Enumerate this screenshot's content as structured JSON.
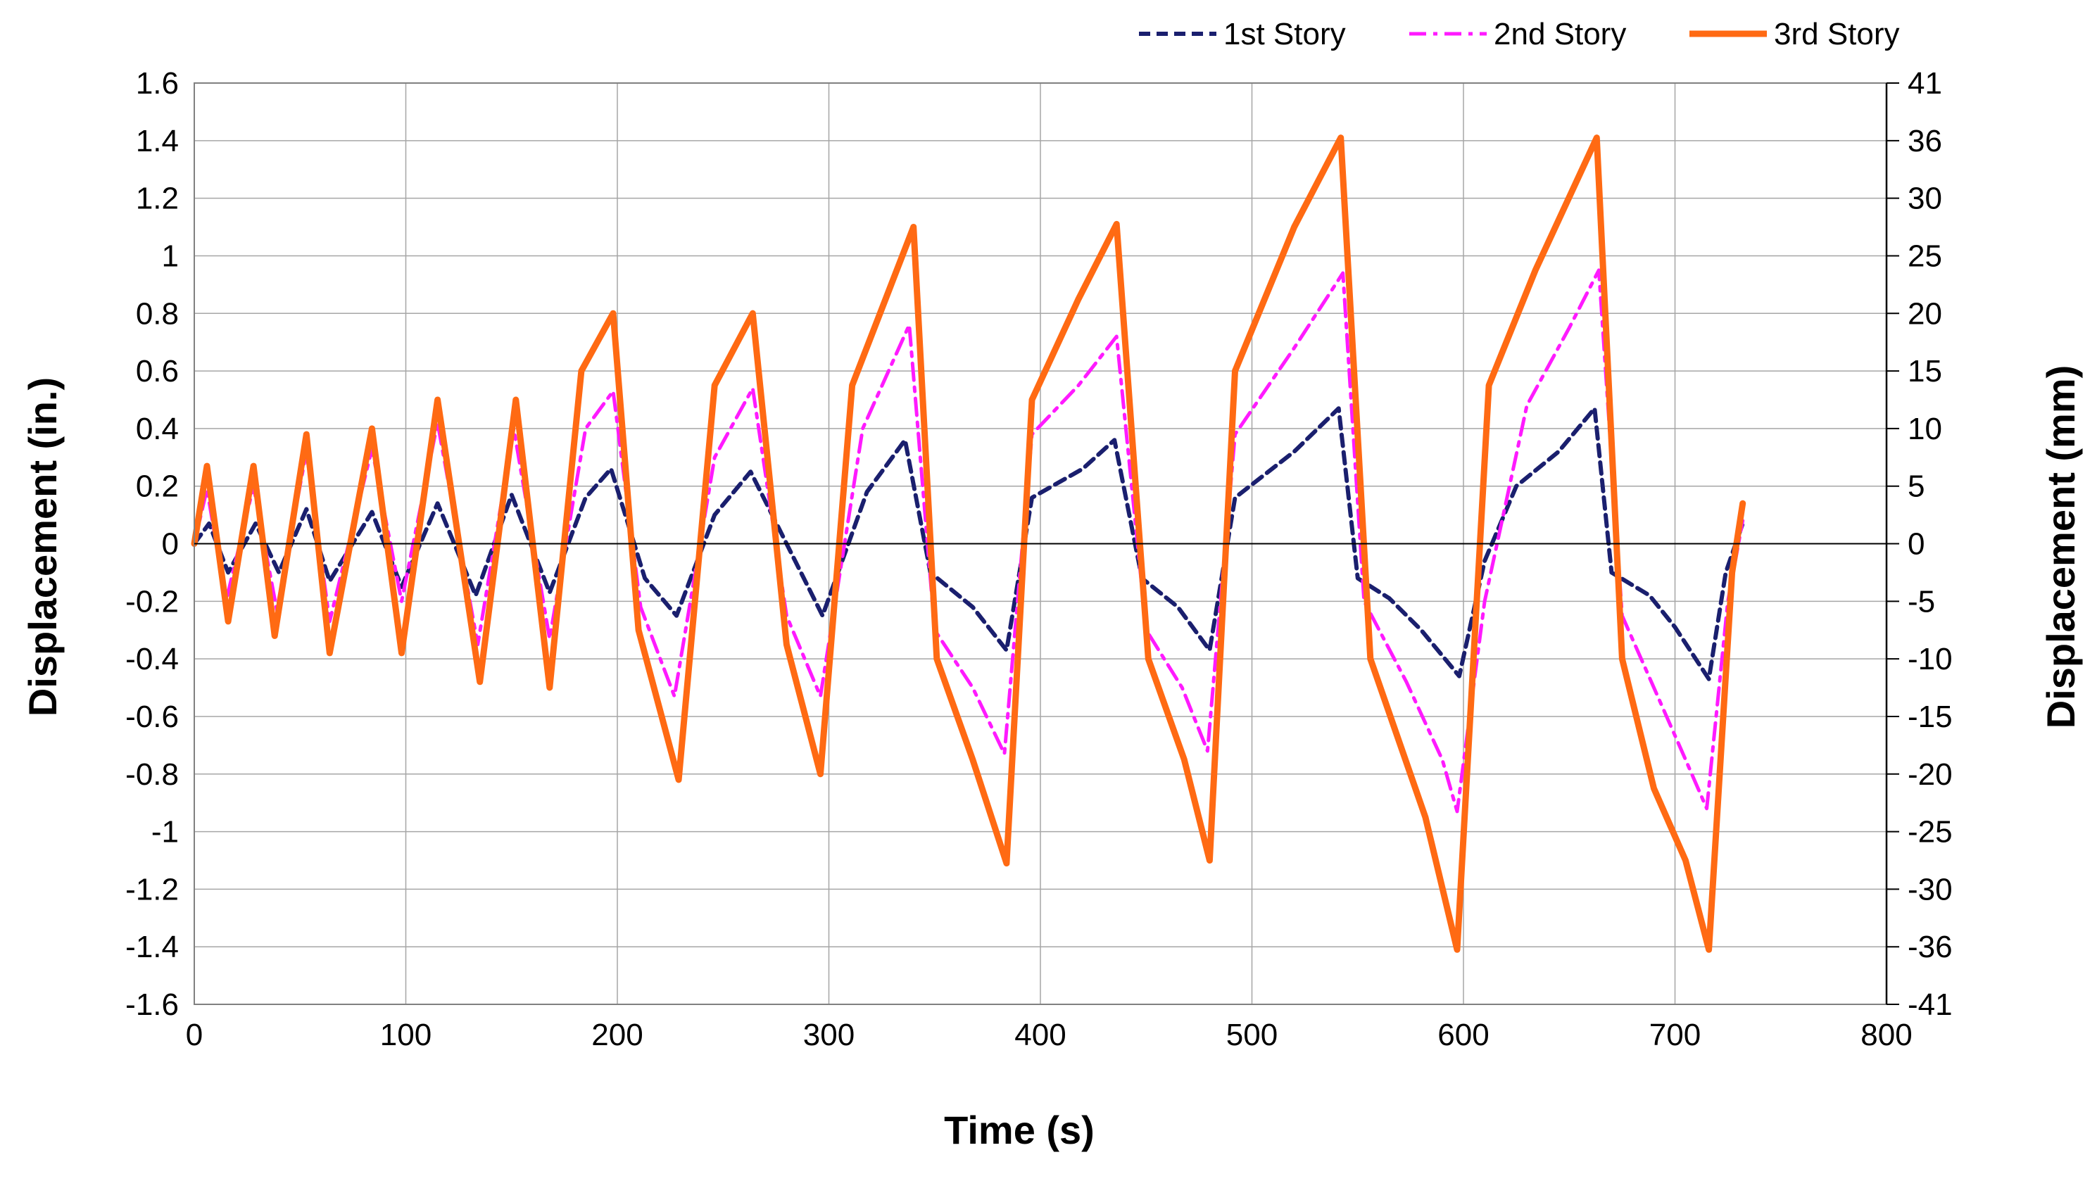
{
  "chart_data": {
    "type": "line",
    "title": "",
    "xlabel": "Time (s)",
    "ylabel": "Displacement (in.)",
    "ylabel_right": "Displacement (mm)",
    "xlim": [
      0,
      800
    ],
    "ylim": [
      -1.6,
      1.6
    ],
    "xticks": [
      "0",
      "100",
      "200",
      "300",
      "400",
      "500",
      "600",
      "700",
      "800"
    ],
    "yticks": [
      "1.6",
      "1.4",
      "1.2",
      "1",
      "0.8",
      "0.6",
      "0.4",
      "0.2",
      "0",
      "-0.2",
      "-0.4",
      "-0.6",
      "-0.8",
      "-1",
      "-1.2",
      "-1.4",
      "-1.6"
    ],
    "yticks_right": [
      "41",
      "36",
      "30",
      "25",
      "20",
      "15",
      "10",
      "5",
      "0",
      "-5",
      "-10",
      "-15",
      "-20",
      "-25",
      "-30",
      "-36",
      "-41"
    ],
    "grid": true,
    "legend_position": "top-right",
    "series": [
      {
        "name": "1st Story",
        "color": "#1a1f6e",
        "dash": "dashed",
        "x": [
          0,
          7,
          16,
          29,
          40,
          53,
          64,
          84,
          98,
          115,
          133,
          150,
          168,
          185,
          197,
          213,
          228,
          246,
          263,
          280,
          297,
          318,
          336,
          348,
          368,
          384,
          396,
          420,
          435,
          448,
          465,
          480,
          492,
          520,
          541,
          550,
          565,
          580,
          598,
          610,
          625,
          645,
          662,
          670,
          688,
          700,
          716,
          724,
          732
        ],
        "y": [
          0,
          0.07,
          -0.1,
          0.07,
          -0.1,
          0.12,
          -0.13,
          0.11,
          -0.15,
          0.14,
          -0.18,
          0.17,
          -0.17,
          0.16,
          0.26,
          -0.12,
          -0.25,
          0.1,
          0.25,
          0.0,
          -0.25,
          0.18,
          0.36,
          -0.1,
          -0.22,
          -0.37,
          0.16,
          0.26,
          0.36,
          -0.12,
          -0.22,
          -0.37,
          0.16,
          0.32,
          0.47,
          -0.12,
          -0.19,
          -0.3,
          -0.46,
          -0.06,
          0.2,
          0.32,
          0.47,
          -0.1,
          -0.18,
          -0.29,
          -0.47,
          -0.1,
          0.07
        ]
      },
      {
        "name": "2nd Story",
        "color": "#ff1aff",
        "dash": "dashdot",
        "x": [
          0,
          6,
          15,
          28,
          39,
          53,
          64,
          84,
          98,
          115,
          134,
          151,
          168,
          185,
          198,
          211,
          227,
          246,
          264,
          280,
          296,
          316,
          338,
          350,
          368,
          383,
          396,
          418,
          436,
          450,
          467,
          479,
          492,
          520,
          543,
          553,
          573,
          590,
          597,
          610,
          630,
          650,
          664,
          675,
          690,
          705,
          715,
          725,
          732
        ],
        "y": [
          0,
          0.19,
          -0.2,
          0.2,
          -0.23,
          0.32,
          -0.27,
          0.33,
          -0.2,
          0.42,
          -0.35,
          0.4,
          -0.33,
          0.4,
          0.53,
          -0.22,
          -0.53,
          0.3,
          0.54,
          -0.25,
          -0.53,
          0.4,
          0.76,
          -0.3,
          -0.5,
          -0.73,
          0.38,
          0.55,
          0.72,
          -0.3,
          -0.5,
          -0.72,
          0.38,
          0.68,
          0.94,
          -0.2,
          -0.48,
          -0.75,
          -0.93,
          -0.2,
          0.48,
          0.75,
          0.95,
          -0.25,
          -0.5,
          -0.75,
          -0.92,
          -0.2,
          0.08
        ]
      },
      {
        "name": "3rd Story",
        "color": "#ff6a13",
        "dash": "solid",
        "x": [
          0,
          6,
          16,
          28,
          38,
          53,
          64,
          84,
          98,
          115,
          135,
          152,
          168,
          183,
          198,
          210,
          229,
          246,
          264,
          280,
          296,
          311,
          340,
          351,
          368,
          384,
          396,
          418,
          436,
          451,
          468,
          480,
          492,
          520,
          542,
          556,
          582,
          597,
          612,
          634,
          663,
          675,
          690,
          705,
          716,
          727,
          732
        ],
        "y": [
          0,
          0.27,
          -0.27,
          0.27,
          -0.32,
          0.38,
          -0.38,
          0.4,
          -0.38,
          0.5,
          -0.48,
          0.5,
          -0.5,
          0.6,
          0.8,
          -0.3,
          -0.82,
          0.55,
          0.8,
          -0.35,
          -0.8,
          0.55,
          1.1,
          -0.4,
          -0.75,
          -1.11,
          0.5,
          0.85,
          1.11,
          -0.4,
          -0.75,
          -1.1,
          0.6,
          1.1,
          1.41,
          -0.4,
          -0.95,
          -1.41,
          0.55,
          0.95,
          1.41,
          -0.4,
          -0.85,
          -1.1,
          -1.41,
          -0.1,
          0.14
        ]
      }
    ]
  }
}
